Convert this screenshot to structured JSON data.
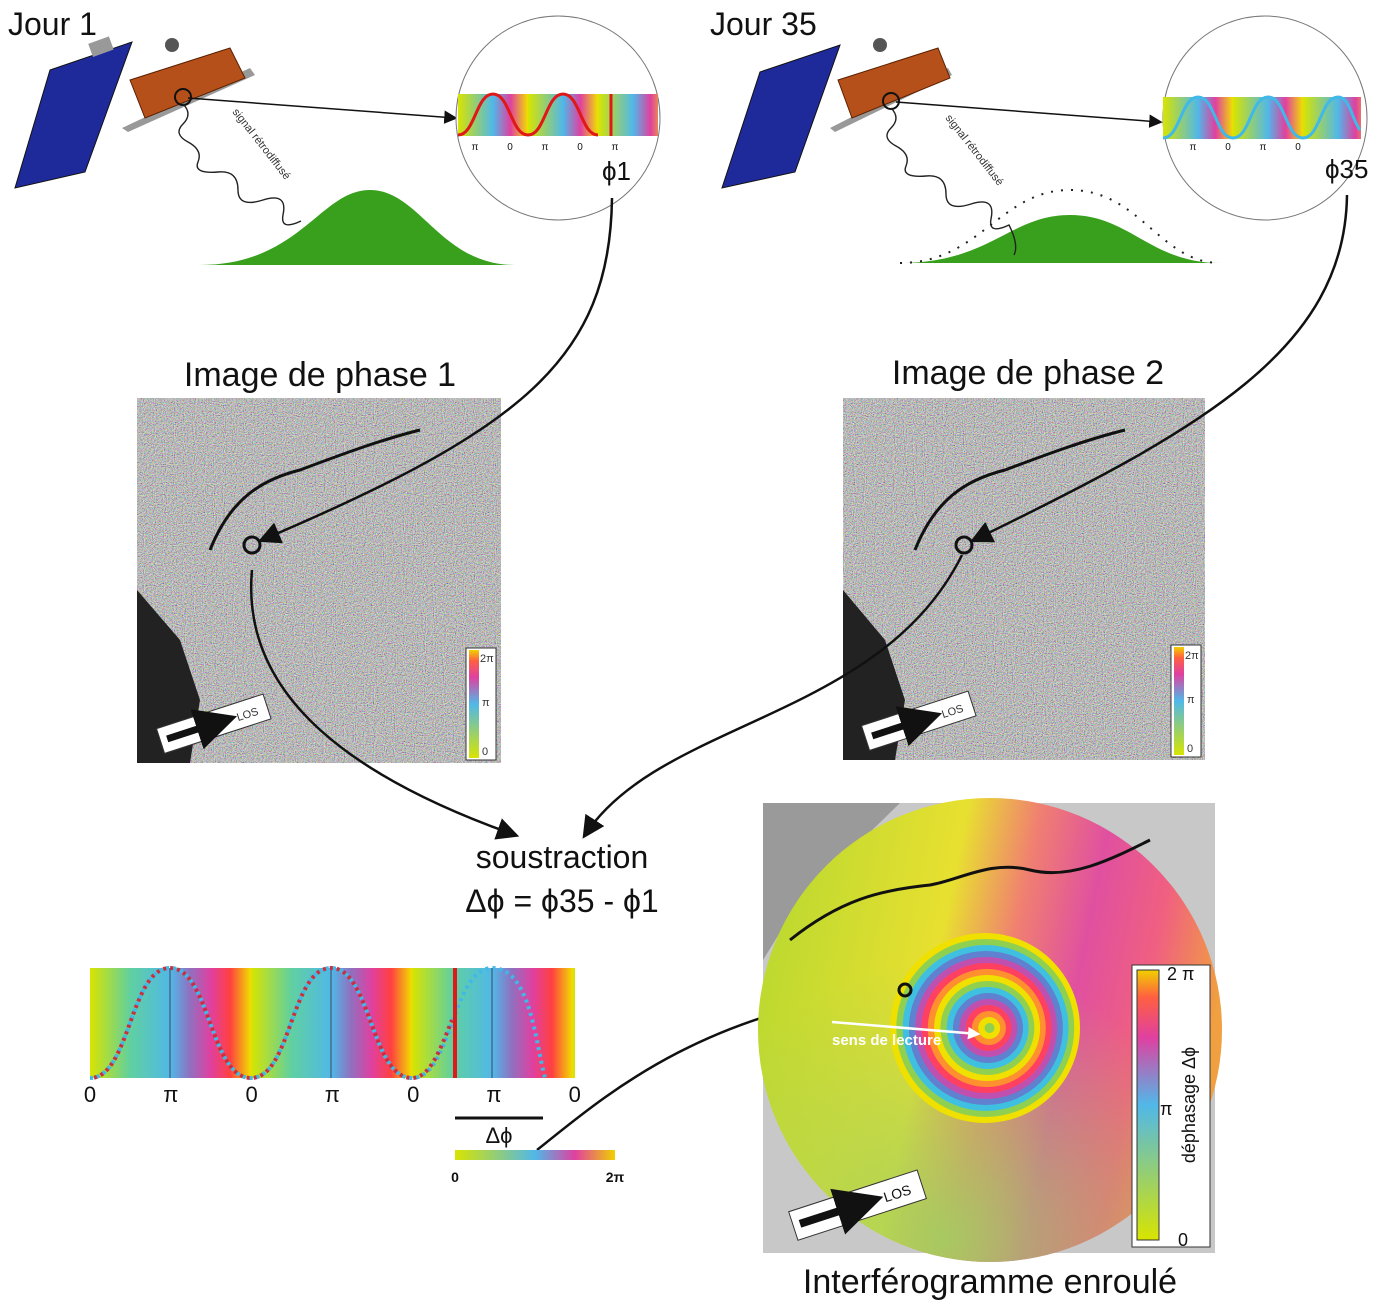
{
  "day1": {
    "title": "Jour 1",
    "signal": "signal rétrodiffusé",
    "phase_label": "ϕ1",
    "ticks": [
      "π",
      "0",
      "π",
      "0",
      "π"
    ]
  },
  "day35": {
    "title": "Jour 35",
    "signal": "signal rétrodiffusé",
    "phase_label": "ϕ35",
    "ticks": [
      "π",
      "0",
      "π",
      "0"
    ]
  },
  "phase_image_1": {
    "title": "Image de phase 1",
    "colorbar": [
      "2π",
      "π",
      "0"
    ],
    "los": "LOS"
  },
  "phase_image_2": {
    "title": "Image de phase 2",
    "colorbar": [
      "2π",
      "π",
      "0"
    ],
    "los": "LOS"
  },
  "subtraction": {
    "label": "soustraction",
    "formula": "Δϕ = ϕ35 - ϕ1"
  },
  "phase_plot": {
    "ticks": [
      "0",
      "π",
      "0",
      "π",
      "0",
      "π",
      "0"
    ],
    "delta_label": "Δϕ",
    "colorbar": [
      "0",
      "2π"
    ]
  },
  "interferogram": {
    "title": "Interférogramme enroulé",
    "reading": "sens de lecture",
    "colorbar_label": "déphasage Δϕ",
    "colorbar": [
      "2 π",
      "π",
      "0"
    ],
    "los": "LOS"
  }
}
